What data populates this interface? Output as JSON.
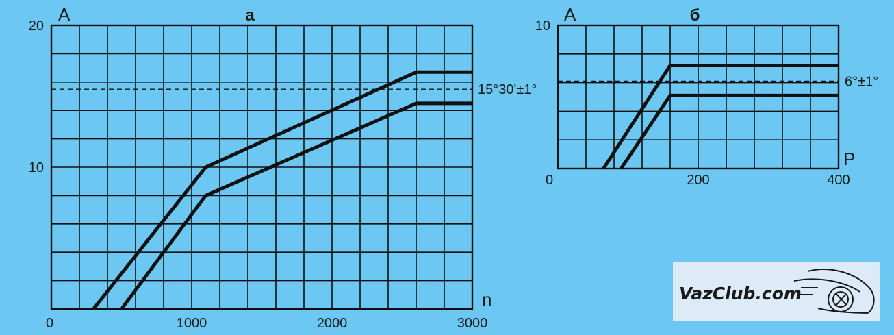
{
  "chart_data": [
    {
      "type": "line",
      "title": "а",
      "xlabel": "n",
      "ylabel": "A",
      "xlim": [
        0,
        3000
      ],
      "ylim": [
        0,
        20
      ],
      "x_ticks": [
        0,
        1000,
        2000,
        3000
      ],
      "y_ticks": [
        10,
        20
      ],
      "grid": true,
      "grid_x_step": 200,
      "grid_y_step": 2,
      "series": [
        {
          "x": [
            300,
            1100,
            2600,
            3000
          ],
          "y": [
            0,
            10,
            16.7,
            16.7
          ]
        },
        {
          "x": [
            500,
            1100,
            2600,
            3000
          ],
          "y": [
            0,
            8,
            14.5,
            14.5
          ]
        }
      ],
      "reference_line": {
        "y": 15.5,
        "label": "15°30'±1°"
      }
    },
    {
      "type": "line",
      "title": "б",
      "xlabel": "P",
      "ylabel": "A",
      "xlim": [
        0,
        400
      ],
      "ylim": [
        0,
        10
      ],
      "x_ticks": [
        0,
        200,
        400
      ],
      "y_ticks": [
        10
      ],
      "grid": true,
      "grid_x_step": 40,
      "grid_y_step": 2,
      "series": [
        {
          "x": [
            65,
            160,
            400
          ],
          "y": [
            0,
            7.2,
            7.2
          ]
        },
        {
          "x": [
            90,
            160,
            400
          ],
          "y": [
            0,
            5.1,
            5.1
          ]
        }
      ],
      "reference_line": {
        "y": 6.1,
        "label": "6°±1°"
      }
    }
  ],
  "watermark": {
    "text": "VazClub.com",
    "logo": "car-wheel-logo",
    "background": "#dcebf7"
  },
  "colors": {
    "background": "#6cc8f2",
    "ink": "#111111"
  }
}
